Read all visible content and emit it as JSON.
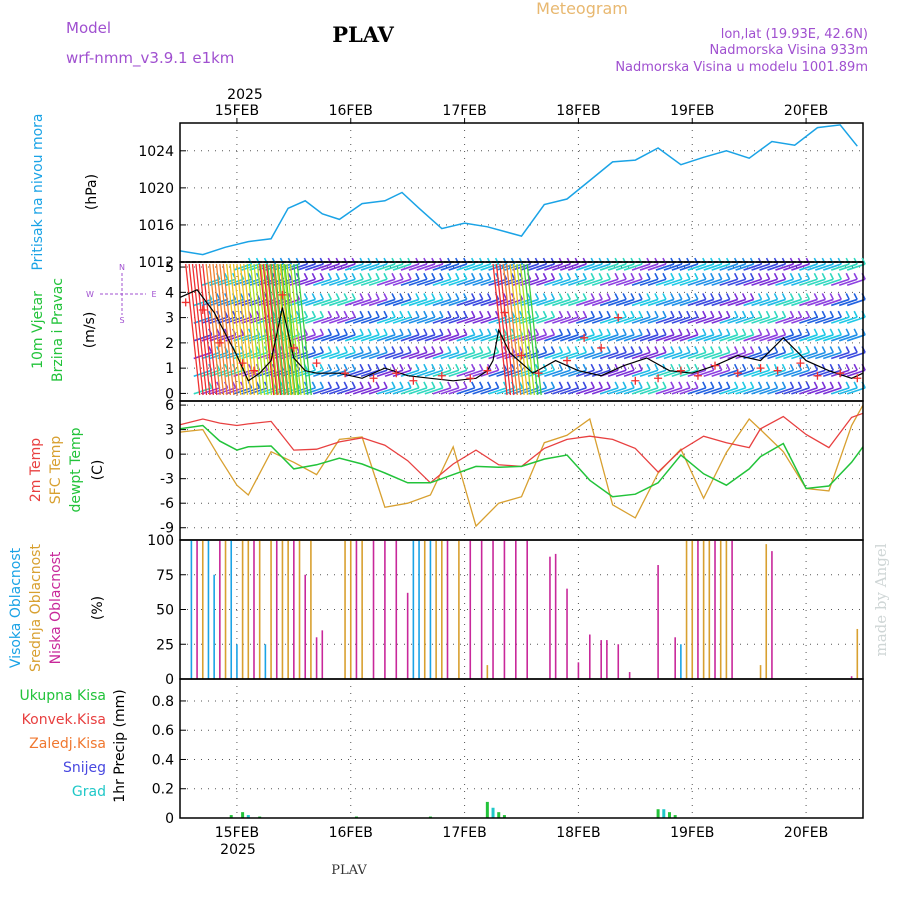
{
  "header": {
    "model_label": "Model",
    "model_name": "wrf-nmm_v3.9.1 e1km",
    "station": "PLAV",
    "meteogram": "Meteogram",
    "lonlat": "lon,lat (19.93E, 42.6N)",
    "elevation": "Nadmorska Visina 933m",
    "model_elevation": "Nadmorska Visina u modelu 1001.89m",
    "footer_station": "PLAV",
    "watermark": "made by Angel"
  },
  "colors": {
    "pressure": "#1aa3e6",
    "temp2m": "#e84040",
    "sfc": "#d8a030",
    "dew": "#22c33a",
    "high_cloud": "#1aa3e6",
    "mid_cloud": "#d8a030",
    "low_cloud": "#c8289a",
    "total_precip": "#22c33a",
    "convective": "#e84040",
    "frozen": "#f07830",
    "snow": "#4848e0",
    "hail": "#20c8c8",
    "header_purple": "#a050d0",
    "header_orange": "#e8b870"
  },
  "axes": {
    "year": "2025",
    "date_labels": [
      "15FEB",
      "16FEB",
      "17FEB",
      "18FEB",
      "19FEB",
      "20FEB"
    ]
  },
  "panels": {
    "pressure": {
      "label": "Pritisak na nivou mora",
      "unit": "(hPa)",
      "ticks": [
        "1012",
        "1016",
        "1020",
        "1024"
      ]
    },
    "wind": {
      "label1": "10m Vjetar",
      "label2": "Brzina i Pravac",
      "unit": "(m/s)",
      "ticks": [
        "0",
        "1",
        "2",
        "3",
        "4",
        "5"
      ],
      "compass": [
        "N",
        "E",
        "S",
        "W"
      ]
    },
    "temperature": {
      "label1": "2m Temp",
      "label2": "SFC Temp",
      "label3": "dewpt Temp",
      "unit": "(C)",
      "ticks": [
        "-9",
        "-6",
        "-3",
        "0",
        "3",
        "6"
      ]
    },
    "cloud": {
      "label1": "Visoka Oblacnost",
      "label2": "Srednja Oblacnost",
      "label3": "Niska Oblacnost",
      "unit": "(%)",
      "ticks": [
        "0",
        "25",
        "50",
        "75",
        "100"
      ]
    },
    "precip": {
      "unit": "1hr Precip (mm)",
      "ticks": [
        "0",
        "0.2",
        "0.4",
        "0.6",
        "0.8"
      ],
      "legend": [
        "Ukupna Kisa",
        "Konvek.Kisa",
        "Zaledj.Kisa",
        "Snijeg",
        "Grad"
      ]
    }
  },
  "chart_data": {
    "type": "line",
    "x_unit": "days from 15FEB 00UTC",
    "x_range": [
      -0.5,
      5.5
    ],
    "pressure": {
      "ylim": [
        1012,
        1027
      ],
      "x": [
        -0.5,
        -0.3,
        -0.1,
        0.1,
        0.3,
        0.45,
        0.6,
        0.75,
        0.9,
        1.1,
        1.3,
        1.45,
        1.6,
        1.8,
        2.0,
        2.2,
        2.5,
        2.7,
        2.9,
        3.1,
        3.3,
        3.5,
        3.7,
        3.9,
        4.1,
        4.3,
        4.5,
        4.7,
        4.9,
        5.1,
        5.3,
        5.45
      ],
      "values": [
        1013.2,
        1012.8,
        1013.6,
        1014.2,
        1014.5,
        1017.8,
        1018.6,
        1017.2,
        1016.6,
        1018.3,
        1018.6,
        1019.5,
        1017.8,
        1015.6,
        1016.2,
        1015.8,
        1014.8,
        1018.2,
        1018.8,
        1020.8,
        1022.8,
        1023.0,
        1024.3,
        1022.5,
        1023.3,
        1024.0,
        1023.2,
        1025.0,
        1024.6,
        1026.5,
        1026.8,
        1024.5
      ]
    },
    "wind": {
      "ylim": [
        -0.3,
        5.2
      ],
      "speed_x": [
        -0.5,
        -0.35,
        -0.2,
        0.0,
        0.1,
        0.2,
        0.3,
        0.4,
        0.5,
        0.6,
        0.7,
        0.9,
        1.1,
        1.3,
        1.5,
        1.7,
        1.9,
        2.1,
        2.2,
        2.25,
        2.3,
        2.4,
        2.6,
        2.8,
        3.0,
        3.2,
        3.4,
        3.6,
        3.8,
        4.0,
        4.2,
        4.4,
        4.6,
        4.8,
        5.0,
        5.2,
        5.4,
        5.5
      ],
      "speed": [
        3.8,
        4.1,
        3.2,
        1.5,
        0.5,
        0.8,
        1.3,
        3.4,
        1.4,
        0.9,
        0.8,
        0.8,
        0.6,
        1.0,
        0.7,
        0.6,
        0.5,
        0.6,
        0.9,
        1.3,
        2.5,
        1.6,
        0.8,
        1.3,
        0.9,
        0.7,
        1.1,
        1.4,
        0.9,
        0.8,
        1.1,
        1.5,
        1.3,
        2.2,
        1.3,
        0.9,
        0.6,
        0.8
      ],
      "gust_x": [
        -0.45,
        -0.3,
        -0.15,
        0.05,
        0.15,
        0.4,
        0.5,
        0.7,
        0.95,
        1.2,
        1.4,
        1.55,
        1.8,
        2.05,
        2.2,
        2.35,
        2.5,
        2.65,
        2.9,
        3.05,
        3.2,
        3.35,
        3.5,
        3.7,
        3.9,
        4.05,
        4.2,
        4.4,
        4.6,
        4.75,
        4.95,
        5.1,
        5.3,
        5.45
      ],
      "gust": [
        3.6,
        3.3,
        2.0,
        1.2,
        0.9,
        3.9,
        1.8,
        1.2,
        0.8,
        0.6,
        0.8,
        0.5,
        0.7,
        0.6,
        0.9,
        3.2,
        1.5,
        0.8,
        1.3,
        2.2,
        1.8,
        3.0,
        0.5,
        0.6,
        0.9,
        0.7,
        1.1,
        0.8,
        1.0,
        0.9,
        1.2,
        0.7,
        0.8,
        0.6
      ],
      "barb_levels": [
        5.0,
        4.4,
        3.6,
        2.9,
        2.2,
        1.5,
        0.8,
        0.1
      ]
    },
    "temperature": {
      "ylim": [
        -10.5,
        6.5
      ],
      "x": [
        -0.5,
        -0.3,
        -0.15,
        0.0,
        0.1,
        0.3,
        0.5,
        0.7,
        0.9,
        1.1,
        1.3,
        1.5,
        1.7,
        1.9,
        2.1,
        2.3,
        2.5,
        2.7,
        2.9,
        3.1,
        3.3,
        3.5,
        3.7,
        3.9,
        4.1,
        4.3,
        4.5,
        4.6,
        4.8,
        5.0,
        5.2,
        5.4,
        5.5
      ],
      "t2m": [
        3.6,
        4.3,
        3.8,
        3.5,
        3.7,
        4.0,
        0.5,
        0.6,
        1.5,
        2.0,
        1.1,
        -0.8,
        -3.5,
        -1.2,
        0.5,
        -1.3,
        -1.5,
        0.7,
        1.8,
        2.2,
        1.8,
        0.7,
        -2.2,
        0.5,
        2.2,
        1.4,
        0.8,
        3.1,
        4.6,
        2.4,
        0.8,
        4.5,
        5.0
      ],
      "sfc": [
        2.7,
        3.0,
        -0.5,
        -3.8,
        -5.0,
        0.3,
        -1.0,
        -2.5,
        1.8,
        2.1,
        -6.5,
        -6.0,
        -5.0,
        0.9,
        -8.8,
        -6.0,
        -5.2,
        1.4,
        2.3,
        4.3,
        -6.2,
        -7.8,
        -2.3,
        0.6,
        -5.4,
        0.2,
        4.3,
        3.0,
        0.3,
        -4.2,
        -4.5,
        3.5,
        6.0
      ],
      "dew": [
        3.1,
        3.5,
        1.6,
        0.5,
        0.9,
        1.0,
        -1.8,
        -1.3,
        -0.5,
        -1.2,
        -2.3,
        -3.5,
        -3.5,
        -2.5,
        -1.5,
        -1.6,
        -1.5,
        -0.6,
        -0.1,
        -3.2,
        -5.2,
        -4.9,
        -3.5,
        -0.1,
        -2.4,
        -3.8,
        -1.8,
        -0.3,
        1.3,
        -4.2,
        -3.9,
        -1.0,
        0.9
      ]
    },
    "cloud": {
      "ylim": [
        0,
        100
      ],
      "bars": [
        {
          "layer": "high",
          "x": -0.4,
          "v": 100
        },
        {
          "layer": "low",
          "x": -0.35,
          "v": 100
        },
        {
          "layer": "mid",
          "x": -0.3,
          "v": 100
        },
        {
          "layer": "high",
          "x": -0.25,
          "v": 100
        },
        {
          "layer": "high",
          "x": -0.2,
          "v": 75
        },
        {
          "layer": "low",
          "x": -0.15,
          "v": 100
        },
        {
          "layer": "mid",
          "x": -0.1,
          "v": 100
        },
        {
          "layer": "high",
          "x": -0.05,
          "v": 100
        },
        {
          "layer": "high",
          "x": 0.0,
          "v": 25
        },
        {
          "layer": "mid",
          "x": 0.05,
          "v": 100
        },
        {
          "layer": "mid",
          "x": 0.1,
          "v": 100
        },
        {
          "layer": "low",
          "x": 0.15,
          "v": 100
        },
        {
          "layer": "mid",
          "x": 0.2,
          "v": 100
        },
        {
          "layer": "high",
          "x": 0.25,
          "v": 25
        },
        {
          "layer": "mid",
          "x": 0.3,
          "v": 100
        },
        {
          "layer": "low",
          "x": 0.35,
          "v": 100
        },
        {
          "layer": "mid",
          "x": 0.4,
          "v": 100
        },
        {
          "layer": "mid",
          "x": 0.45,
          "v": 100
        },
        {
          "layer": "low",
          "x": 0.5,
          "v": 100
        },
        {
          "layer": "mid",
          "x": 0.55,
          "v": 100
        },
        {
          "layer": "low",
          "x": 0.6,
          "v": 75
        },
        {
          "layer": "mid",
          "x": 0.65,
          "v": 100
        },
        {
          "layer": "low",
          "x": 0.7,
          "v": 30
        },
        {
          "layer": "low",
          "x": 0.75,
          "v": 35
        },
        {
          "layer": "mid",
          "x": 0.95,
          "v": 100
        },
        {
          "layer": "mid",
          "x": 1.0,
          "v": 100
        },
        {
          "layer": "low",
          "x": 1.05,
          "v": 100
        },
        {
          "layer": "mid",
          "x": 1.1,
          "v": 100
        },
        {
          "layer": "low",
          "x": 1.2,
          "v": 100
        },
        {
          "layer": "low",
          "x": 1.3,
          "v": 100
        },
        {
          "layer": "low",
          "x": 1.4,
          "v": 100
        },
        {
          "layer": "low",
          "x": 1.5,
          "v": 62
        },
        {
          "layer": "high",
          "x": 1.55,
          "v": 100
        },
        {
          "layer": "high",
          "x": 1.6,
          "v": 100
        },
        {
          "layer": "mid",
          "x": 1.65,
          "v": 100
        },
        {
          "layer": "high",
          "x": 1.7,
          "v": 100
        },
        {
          "layer": "mid",
          "x": 1.75,
          "v": 100
        },
        {
          "layer": "mid",
          "x": 1.8,
          "v": 100
        },
        {
          "layer": "low",
          "x": 1.85,
          "v": 100
        },
        {
          "layer": "mid",
          "x": 1.95,
          "v": 100
        },
        {
          "layer": "low",
          "x": 2.05,
          "v": 100
        },
        {
          "layer": "low",
          "x": 2.15,
          "v": 100
        },
        {
          "layer": "mid",
          "x": 2.2,
          "v": 10
        },
        {
          "layer": "low",
          "x": 2.25,
          "v": 100
        },
        {
          "layer": "low",
          "x": 2.35,
          "v": 100
        },
        {
          "layer": "low",
          "x": 2.45,
          "v": 100
        },
        {
          "layer": "low",
          "x": 2.55,
          "v": 100
        },
        {
          "layer": "low",
          "x": 2.75,
          "v": 88
        },
        {
          "layer": "low",
          "x": 2.8,
          "v": 90
        },
        {
          "layer": "low",
          "x": 2.9,
          "v": 65
        },
        {
          "layer": "low",
          "x": 3.0,
          "v": 12
        },
        {
          "layer": "low",
          "x": 3.1,
          "v": 32
        },
        {
          "layer": "low",
          "x": 3.2,
          "v": 28
        },
        {
          "layer": "low",
          "x": 3.25,
          "v": 28
        },
        {
          "layer": "low",
          "x": 3.35,
          "v": 25
        },
        {
          "layer": "low",
          "x": 3.45,
          "v": 5
        },
        {
          "layer": "low",
          "x": 3.7,
          "v": 82
        },
        {
          "layer": "low",
          "x": 3.85,
          "v": 30
        },
        {
          "layer": "high",
          "x": 3.9,
          "v": 25
        },
        {
          "layer": "mid",
          "x": 3.95,
          "v": 100
        },
        {
          "layer": "mid",
          "x": 4.0,
          "v": 100
        },
        {
          "layer": "low",
          "x": 4.05,
          "v": 100
        },
        {
          "layer": "mid",
          "x": 4.1,
          "v": 100
        },
        {
          "layer": "mid",
          "x": 4.15,
          "v": 100
        },
        {
          "layer": "low",
          "x": 4.2,
          "v": 100
        },
        {
          "layer": "mid",
          "x": 4.25,
          "v": 100
        },
        {
          "layer": "mid",
          "x": 4.3,
          "v": 100
        },
        {
          "layer": "low",
          "x": 4.35,
          "v": 100
        },
        {
          "layer": "mid",
          "x": 4.6,
          "v": 10
        },
        {
          "layer": "mid",
          "x": 4.65,
          "v": 97
        },
        {
          "layer": "low",
          "x": 4.7,
          "v": 92
        },
        {
          "layer": "mid",
          "x": 5.45,
          "v": 36
        },
        {
          "layer": "low",
          "x": 5.4,
          "v": 2
        }
      ]
    },
    "precip": {
      "ylim": [
        0,
        0.95
      ],
      "bars": [
        {
          "type": "total",
          "x": -0.05,
          "v": 0.02
        },
        {
          "type": "total",
          "x": 0.05,
          "v": 0.04
        },
        {
          "type": "hail",
          "x": 0.1,
          "v": 0.02
        },
        {
          "type": "total",
          "x": 0.2,
          "v": 0.01
        },
        {
          "type": "total",
          "x": 1.05,
          "v": 0.01
        },
        {
          "type": "total",
          "x": 1.7,
          "v": 0.01
        },
        {
          "type": "total",
          "x": 2.2,
          "v": 0.11
        },
        {
          "type": "hail",
          "x": 2.25,
          "v": 0.07
        },
        {
          "type": "total",
          "x": 2.3,
          "v": 0.04
        },
        {
          "type": "total",
          "x": 2.35,
          "v": 0.02
        },
        {
          "type": "total",
          "x": 3.7,
          "v": 0.06
        },
        {
          "type": "hail",
          "x": 3.75,
          "v": 0.06
        },
        {
          "type": "total",
          "x": 3.8,
          "v": 0.04
        },
        {
          "type": "total",
          "x": 3.85,
          "v": 0.02
        }
      ]
    }
  }
}
